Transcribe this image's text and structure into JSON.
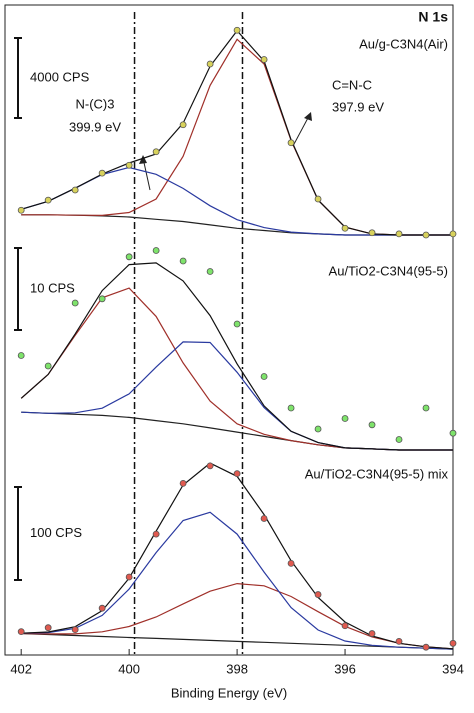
{
  "chart_data": {
    "type": "line",
    "title": "N 1s",
    "xlabel": "Binding Energy (eV)",
    "xlim": [
      402.3,
      394
    ],
    "xticks": [
      402,
      400,
      398,
      396,
      394
    ],
    "reference_lines": [
      399.9,
      397.9
    ],
    "panels": [
      {
        "label": "Au/g-C3N4(Air)",
        "scale_bar": "4000 CPS",
        "ylim": [
          0,
          100
        ],
        "annotations": [
          "N-(C)3",
          "399.9 eV",
          "C=N-C",
          "397.9 eV"
        ],
        "x": [
          402,
          401.5,
          401,
          400.5,
          400,
          399.5,
          399,
          398.5,
          398,
          397.5,
          397,
          396.5,
          396,
          395.5,
          395,
          394.5,
          394
        ],
        "series": [
          {
            "kind": "line",
            "color": "#222222",
            "values": [
              9,
              9,
              8.8,
              8.5,
              8,
              7,
              6,
              4.5,
              3,
              2,
              1,
              0.5,
              0,
              0,
              0,
              0,
              0
            ]
          },
          {
            "kind": "line",
            "color": "#a0302a",
            "values": [
              9,
              9,
              8.8,
              8.7,
              10,
              16,
              35,
              66.5,
              87,
              76,
              42,
              15.5,
              3.5,
              0.5,
              0,
              0,
              0
            ]
          },
          {
            "kind": "line",
            "color": "#2a3aa0",
            "values": [
              11.4,
              15,
              20.8,
              26.9,
              30,
              27,
              20.7,
              13,
              6.8,
              3.3,
              1.3,
              0.5,
              0,
              0,
              0,
              0,
              0
            ]
          },
          {
            "kind": "line",
            "color": "#111111",
            "values": [
              11.4,
              15,
              20.8,
              27.1,
              32,
              36,
              49.7,
              75,
              90.8,
              77.3,
              42.3,
              15.5,
              3.5,
              0.5,
              0,
              0,
              0
            ]
          },
          {
            "kind": "points",
            "color": "#d8d25c",
            "values": [
              11,
              15.5,
              20,
              27.5,
              31,
              37,
              49,
              76,
              91,
              78,
              41,
              16,
              3,
              1,
              0.5,
              0,
              0.5
            ]
          }
        ]
      },
      {
        "label": "Au/TiO2-C3N4(95-5)",
        "scale_bar": "10 CPS",
        "ylim": [
          0,
          100
        ],
        "x": [
          402,
          401.5,
          401,
          400.5,
          400,
          399.5,
          399,
          398.5,
          398,
          397.5,
          397,
          396.5,
          396,
          395.5,
          395,
          394.5,
          394
        ],
        "series": [
          {
            "kind": "line",
            "color": "#222222",
            "values": [
              18,
              17.5,
              17,
              16.5,
              15.5,
              14,
              12.5,
              10.5,
              8.5,
              6.5,
              4.5,
              2.5,
              1,
              0.5,
              0,
              0,
              0
            ]
          },
          {
            "kind": "line",
            "color": "#a0302a",
            "values": [
              24.6,
              36,
              54.6,
              72.5,
              77.1,
              63.6,
              41.5,
              23.3,
              12.5,
              7.5,
              4.5,
              2.5,
              1,
              0.5,
              0,
              0,
              0
            ]
          },
          {
            "kind": "line",
            "color": "#2a3aa0",
            "values": [
              18,
              17.5,
              17.7,
              19.9,
              26.7,
              39.5,
              51.5,
              51.2,
              37,
              20.2,
              8.9,
              3.5,
              1,
              0.5,
              0,
              0,
              0
            ]
          },
          {
            "kind": "line",
            "color": "#111111",
            "values": [
              24.6,
              36,
              55.3,
              75.9,
              88.3,
              89.1,
              80.5,
              64,
              41,
              21,
              8.9,
              3.5,
              1,
              0.5,
              0,
              0,
              0
            ]
          },
          {
            "kind": "points",
            "color": "#7ee36b",
            "values": [
              45,
              40,
              70,
              72,
              92,
              95,
              90,
              85,
              60,
              35,
              20,
              10,
              15,
              12,
              5,
              20,
              8
            ]
          }
        ]
      },
      {
        "label": "Au/TiO2-C3N4(95-5) mix",
        "scale_bar": "100 CPS",
        "ylim": [
          0,
          100
        ],
        "x": [
          402,
          401.5,
          401,
          400.5,
          400,
          399.5,
          399,
          398.5,
          398,
          397.5,
          397,
          396.5,
          396,
          395.5,
          395,
          394.5,
          394
        ],
        "series": [
          {
            "kind": "line",
            "color": "#222222",
            "values": [
              11,
              10.5,
              10,
              9.5,
              9,
              8.5,
              8,
              7.5,
              7,
              6.5,
              6,
              5.5,
              5,
              4.5,
              4,
              3.5,
              3
            ]
          },
          {
            "kind": "line",
            "color": "#a0302a",
            "values": [
              11,
              10.8,
              10.8,
              11.9,
              14.6,
              19.5,
              26.2,
              32.7,
              36.6,
              35.5,
              30,
              22.2,
              14.7,
              9.3,
              6,
              4.2,
              3.2
            ]
          },
          {
            "kind": "line",
            "color": "#2a3aa0",
            "values": [
              11.2,
              11.5,
              13.7,
              20.3,
              33.8,
              52.5,
              69,
              73.2,
              62,
              42.5,
              24.3,
              12.8,
              7.2,
              5,
              4,
              3.5,
              3
            ]
          },
          {
            "kind": "line",
            "color": "#111111",
            "values": [
              11.2,
              11.8,
              14.5,
              22.7,
              39.4,
              63.5,
              87.2,
              98.4,
              91.6,
              72,
              48.3,
              29.5,
              16.9,
              9.8,
              6,
              4.2,
              3.2
            ]
          },
          {
            "kind": "points",
            "color": "#e05a50",
            "values": [
              12,
              14,
              13,
              24,
              40,
              62,
              88,
              97,
              93,
              70,
              47,
              31,
              15,
              11,
              7,
              4,
              6
            ]
          }
        ]
      }
    ]
  }
}
